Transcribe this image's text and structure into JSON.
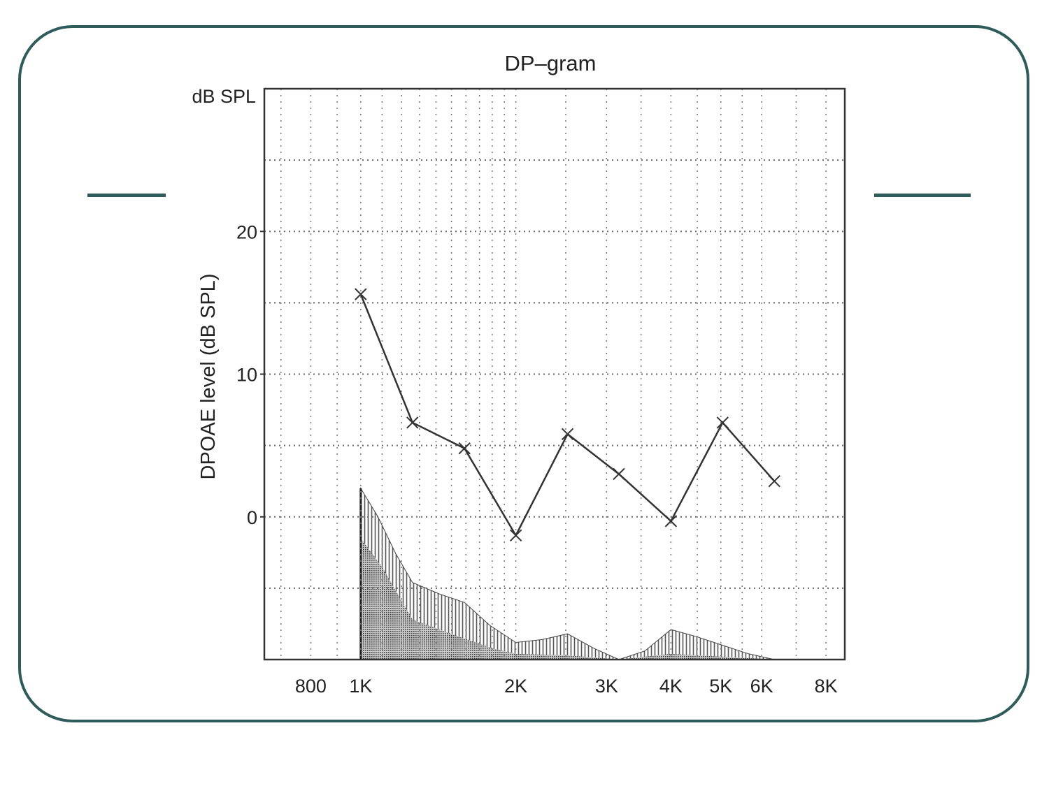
{
  "slide": {
    "frame_color": "#2f5b5b"
  },
  "chart_data": {
    "type": "line",
    "title": "DP–gram",
    "ylabel": "DPOAE level (dB SPL)",
    "y_unit_label": "dB SPL",
    "y_scale": "linear",
    "ylim": [
      -10,
      30
    ],
    "y_ticks": [
      {
        "value": 20,
        "label": "20"
      },
      {
        "value": 10,
        "label": "10"
      },
      {
        "value": 0,
        "label": "0"
      }
    ],
    "x_scale": "log",
    "xlim": [
      650,
      8700
    ],
    "x_ticks": [
      {
        "value": 800,
        "label": "800"
      },
      {
        "value": 1000,
        "label": "1K"
      },
      {
        "value": 2000,
        "label": "2K"
      },
      {
        "value": 3000,
        "label": "3K"
      },
      {
        "value": 4000,
        "label": "4K"
      },
      {
        "value": 5000,
        "label": "5K"
      },
      {
        "value": 6000,
        "label": "6K"
      },
      {
        "value": 8000,
        "label": "8K"
      }
    ],
    "grid": true,
    "series": [
      {
        "marker": "x",
        "color": "#333333",
        "points": [
          {
            "x": 1000,
            "y": 15.6
          },
          {
            "x": 1260,
            "y": 6.6
          },
          {
            "x": 1590,
            "y": 4.8
          },
          {
            "x": 2000,
            "y": -1.3
          },
          {
            "x": 2520,
            "y": 5.8
          },
          {
            "x": 3170,
            "y": 3.0
          },
          {
            "x": 4000,
            "y": -0.3
          },
          {
            "x": 5040,
            "y": 6.6
          },
          {
            "x": 6350,
            "y": 2.5
          }
        ]
      }
    ],
    "noise_floor": {
      "upper": [
        {
          "x": 1000,
          "y": 2.0
        },
        {
          "x": 1080,
          "y": 0.0
        },
        {
          "x": 1170,
          "y": -2.6
        },
        {
          "x": 1260,
          "y": -4.6
        },
        {
          "x": 1420,
          "y": -5.4
        },
        {
          "x": 1590,
          "y": -6.0
        },
        {
          "x": 1780,
          "y": -7.6
        },
        {
          "x": 2000,
          "y": -8.8
        },
        {
          "x": 2250,
          "y": -8.6
        },
        {
          "x": 2520,
          "y": -8.2
        },
        {
          "x": 2830,
          "y": -9.2
        },
        {
          "x": 3170,
          "y": -10.0
        },
        {
          "x": 3560,
          "y": -9.4
        },
        {
          "x": 4000,
          "y": -7.9
        },
        {
          "x": 4490,
          "y": -8.4
        },
        {
          "x": 5040,
          "y": -9.0
        },
        {
          "x": 5660,
          "y": -9.6
        },
        {
          "x": 6350,
          "y": -10.0
        }
      ],
      "lower": [
        {
          "x": 1000,
          "y": -1.5
        },
        {
          "x": 1100,
          "y": -3.5
        },
        {
          "x": 1260,
          "y": -7.2
        },
        {
          "x": 1500,
          "y": -8.2
        },
        {
          "x": 1800,
          "y": -9.2
        },
        {
          "x": 2000,
          "y": -9.6
        },
        {
          "x": 2520,
          "y": -9.7
        },
        {
          "x": 3170,
          "y": -10.0
        },
        {
          "x": 4000,
          "y": -9.6
        },
        {
          "x": 5040,
          "y": -9.8
        },
        {
          "x": 6350,
          "y": -10.0
        }
      ]
    }
  }
}
